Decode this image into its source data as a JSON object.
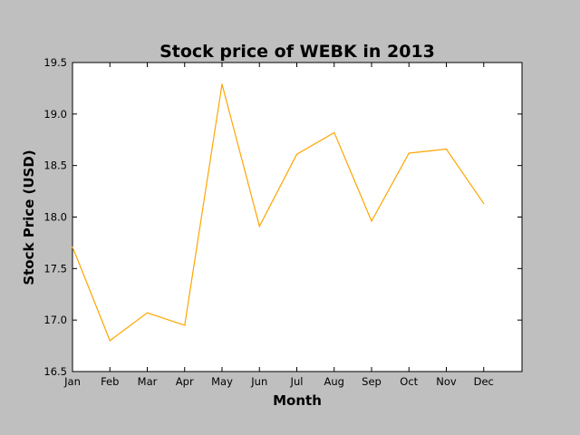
{
  "chart_data": {
    "type": "line",
    "title": "Stock price of WEBK in 2013",
    "xlabel": "Month",
    "ylabel": "Stock Price (USD)",
    "categories": [
      "Jan",
      "Feb",
      "Mar",
      "Apr",
      "May",
      "Jun",
      "Jul",
      "Aug",
      "Sep",
      "Oct",
      "Nov",
      "Dec"
    ],
    "series": [
      {
        "values": [
          17.71,
          16.8,
          17.07,
          16.95,
          19.29,
          17.91,
          18.61,
          18.82,
          17.96,
          18.62,
          18.66,
          18.13
        ],
        "color": "#ffa500"
      }
    ],
    "ylim": [
      16.5,
      19.5
    ],
    "yticks": [
      "16.5",
      "17.0",
      "17.5",
      "18.0",
      "18.5",
      "19.0",
      "19.5"
    ],
    "grid": false,
    "legend": "none"
  }
}
